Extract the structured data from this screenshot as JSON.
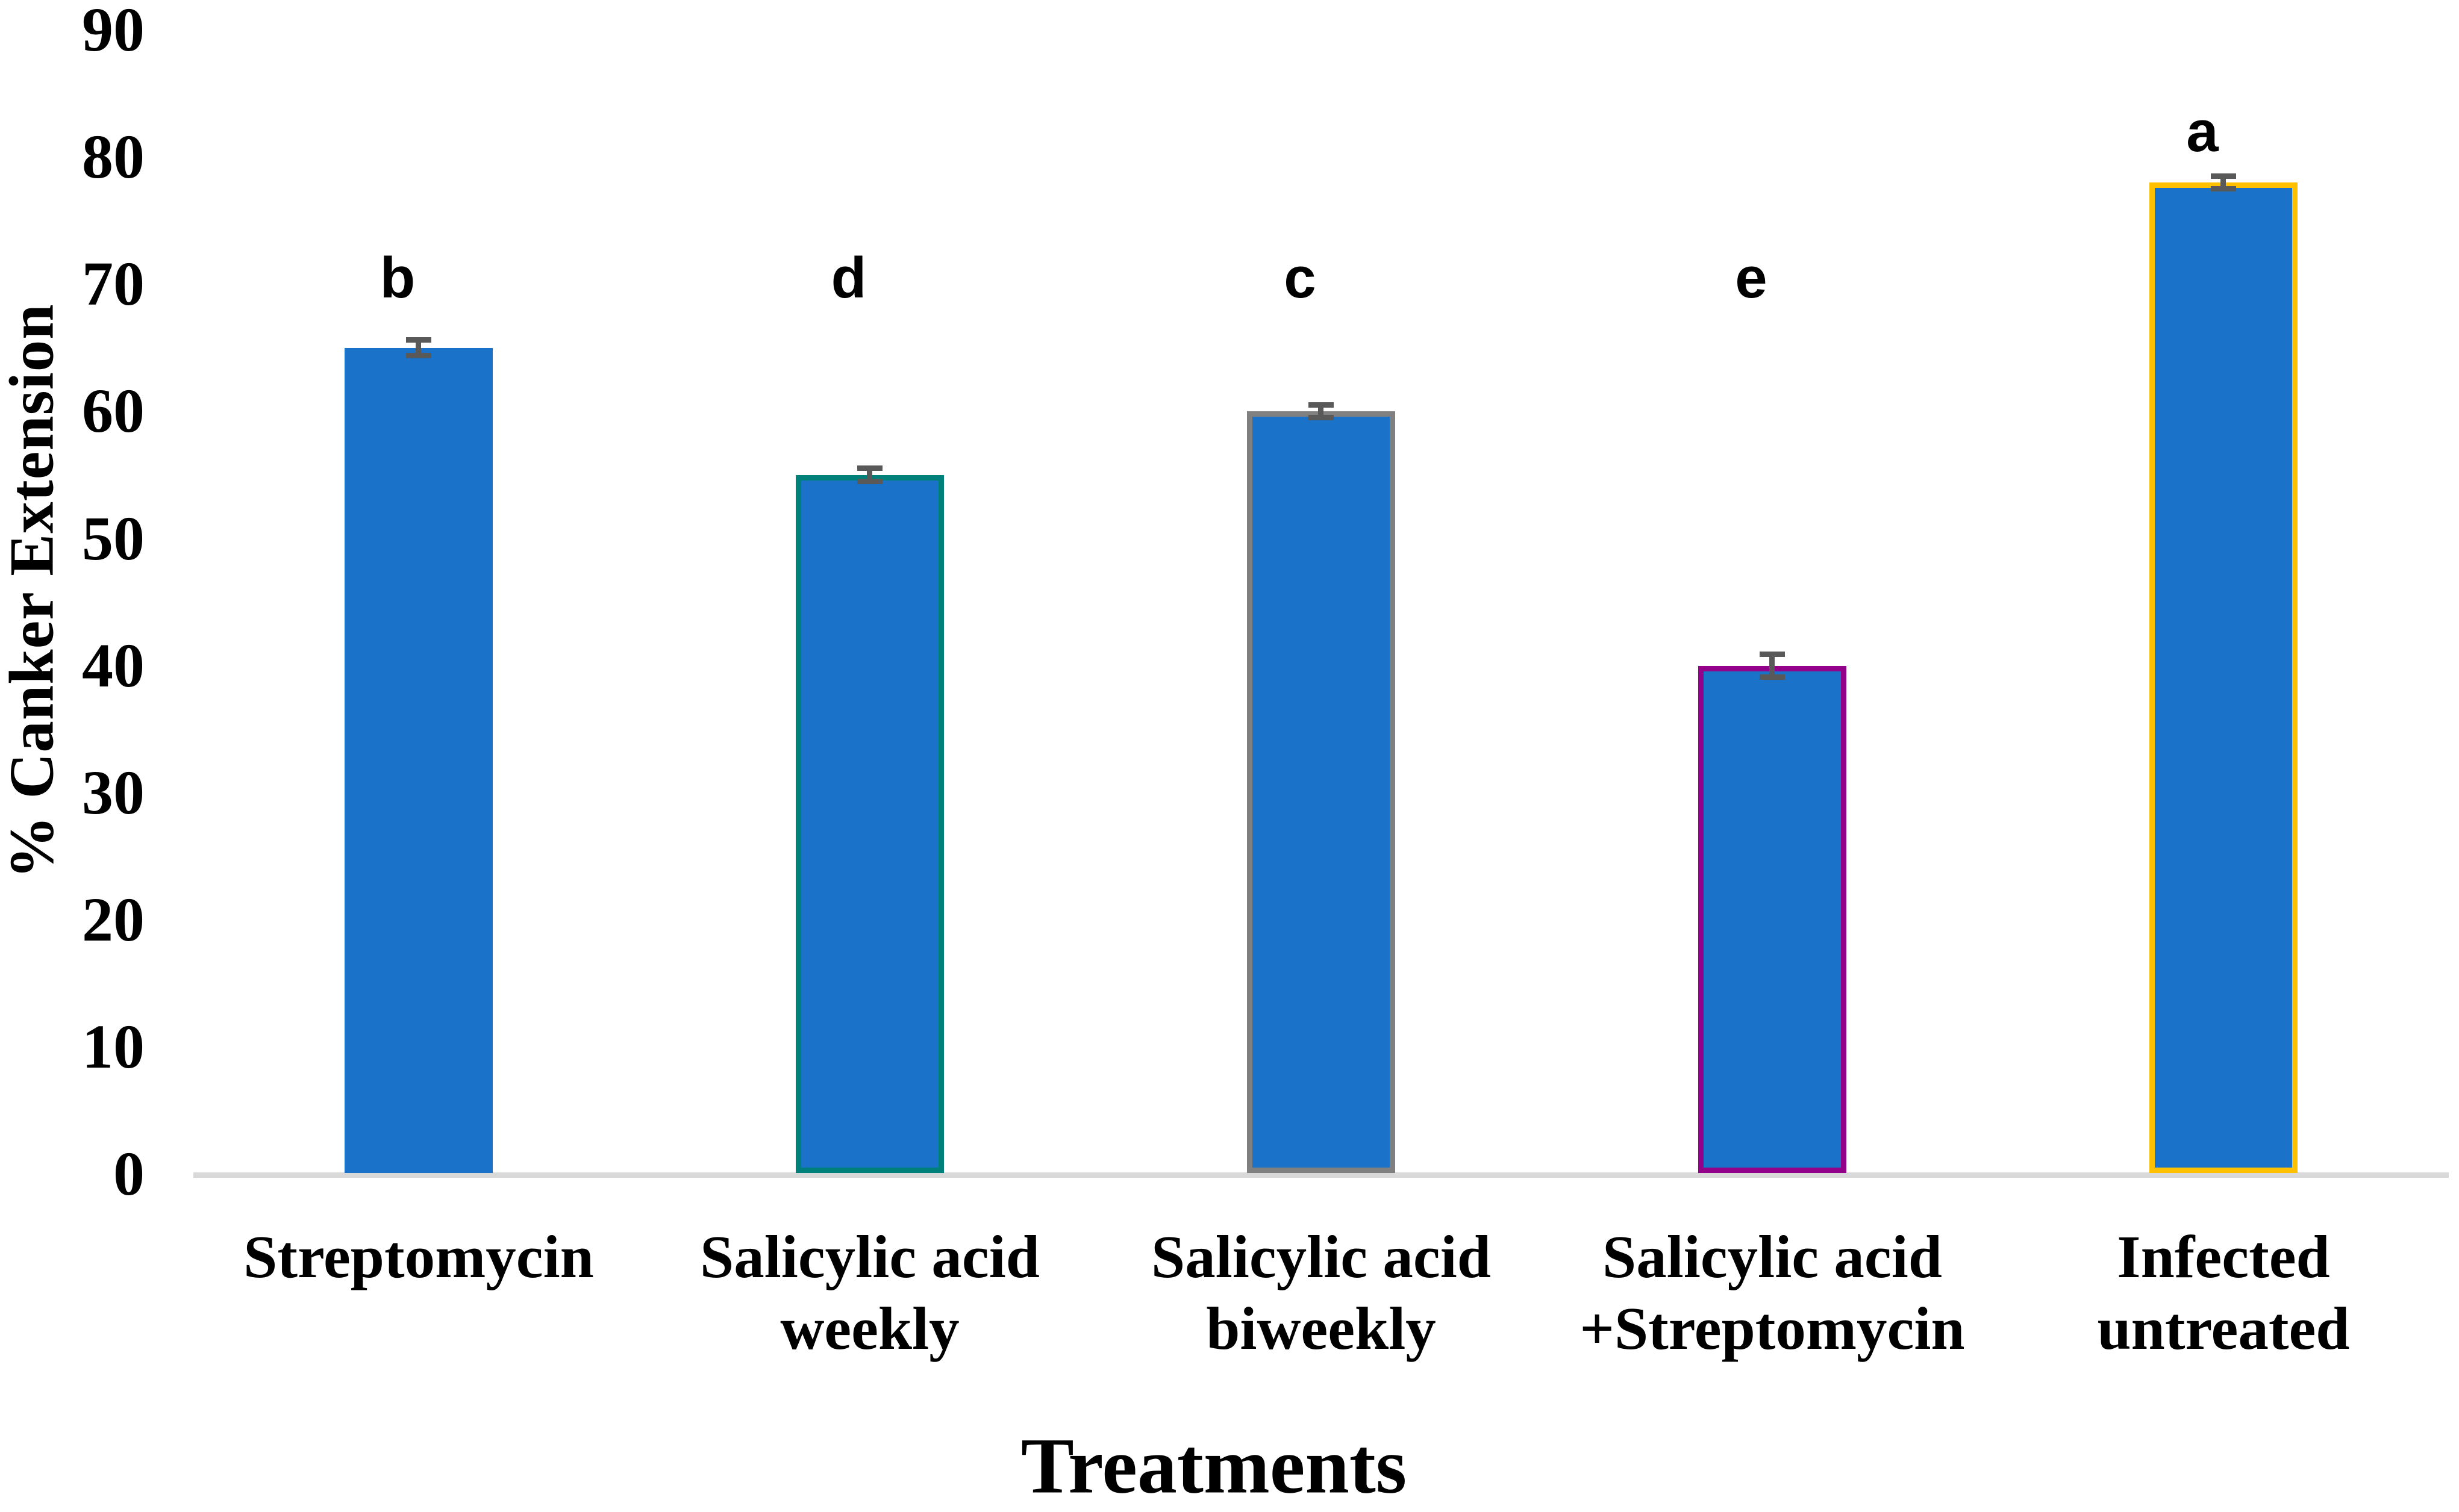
{
  "figure": {
    "background": "#FFFFFF"
  },
  "chart_data": {
    "type": "bar",
    "title": "",
    "xlabel": "Treatments",
    "ylabel": "% Canker Extension",
    "ylim": [
      0,
      90
    ],
    "yticks": [
      0,
      10,
      20,
      30,
      40,
      50,
      60,
      70,
      80,
      90
    ],
    "grid": false,
    "legend": "none",
    "categories": [
      "Streptomycin",
      "Salicylic acid weekly",
      "Salicylic acid biweekly",
      "Salicylic acid +Streptomycin",
      "Infected untreated"
    ],
    "category_label_lines": [
      [
        "Streptomycin"
      ],
      [
        "Salicylic acid",
        "weekly"
      ],
      [
        "Salicylic acid",
        "biweekly"
      ],
      [
        "Salicylic acid",
        "+Streptomycin"
      ],
      [
        "Infected",
        "untreated"
      ]
    ],
    "values": [
      65,
      55,
      60,
      40,
      78
    ],
    "error_bars": [
      0.6,
      0.5,
      0.5,
      0.9,
      0.5
    ],
    "sig_letters": [
      "b",
      "d",
      "c",
      "e",
      "a"
    ],
    "sig_letter_y_values": [
      70.5,
      70.5,
      70.5,
      70.5,
      82
    ],
    "colors": {
      "bar_fill": "#1A73C8",
      "bar_borders": [
        "#1A73C8",
        "#00807A",
        "#808080",
        "#930089",
        "#FFC000"
      ],
      "error_bar": "#595959",
      "axis_line": "#D9D9D9",
      "text": "#000000"
    }
  }
}
